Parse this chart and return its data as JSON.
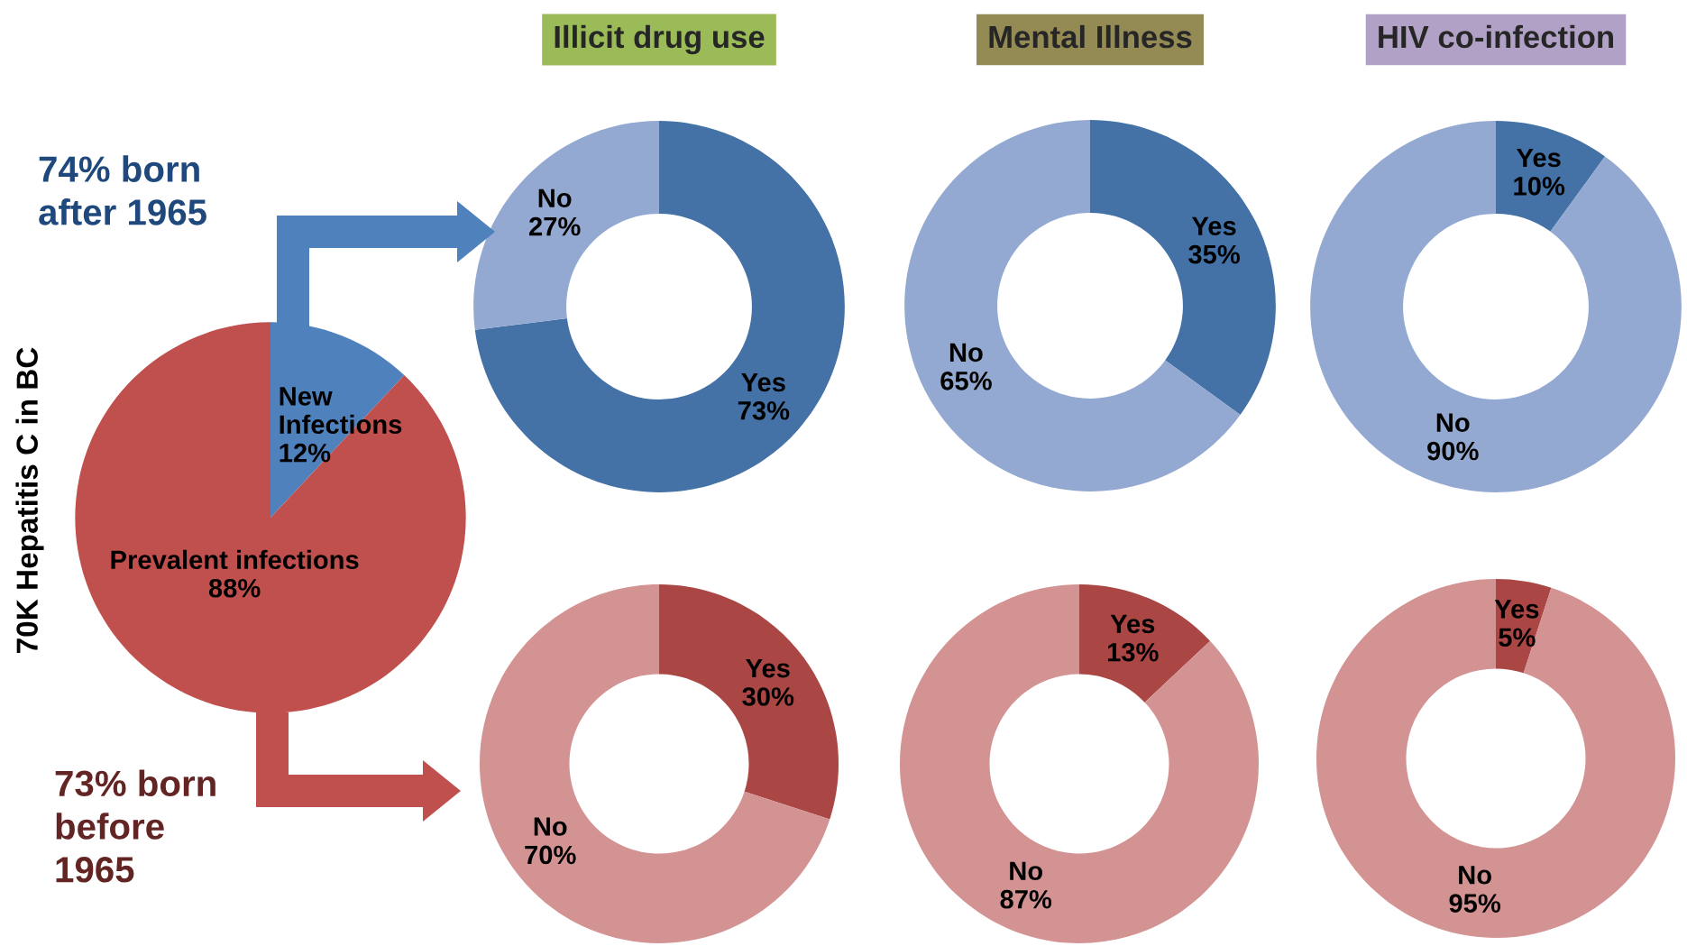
{
  "chart_data": [
    {
      "type": "pie",
      "ylabel": "70K Hepatitis C in BC",
      "categories": [
        "New Infections",
        "Prevalent infections"
      ],
      "values": [
        12,
        88
      ],
      "colors": [
        "#4f81bd",
        "#c0504d"
      ],
      "value_labels": [
        "12%",
        "88%"
      ],
      "annotations": [
        "74% born\nafter 1965",
        "73% born\nbefore\n1965"
      ]
    },
    {
      "type": "donut",
      "title": "Illicit drug use",
      "categories": [
        "Yes",
        "No"
      ],
      "values": [
        73,
        27
      ],
      "colors": [
        "#4472a7",
        "#94a9d1"
      ],
      "value_labels": [
        "73%",
        "27%"
      ]
    },
    {
      "type": "donut",
      "title": "Mental Illness",
      "categories": [
        "Yes",
        "No"
      ],
      "values": [
        35,
        65
      ],
      "colors": [
        "#4472a7",
        "#94a9d1"
      ],
      "value_labels": [
        "35%",
        "65%"
      ]
    },
    {
      "type": "donut",
      "title": "HIV co-infection",
      "categories": [
        "Yes",
        "No"
      ],
      "values": [
        10,
        90
      ],
      "colors": [
        "#4472a7",
        "#94a9d1"
      ],
      "value_labels": [
        "10%",
        "90%"
      ]
    },
    {
      "type": "donut",
      "categories": [
        "Yes",
        "No"
      ],
      "values": [
        30,
        70
      ],
      "colors": [
        "#aa4644",
        "#d49393"
      ],
      "value_labels": [
        "30%",
        "70%"
      ]
    },
    {
      "type": "donut",
      "categories": [
        "Yes",
        "No"
      ],
      "values": [
        13,
        87
      ],
      "colors": [
        "#aa4644",
        "#d49393"
      ],
      "value_labels": [
        "13%",
        "87%"
      ]
    },
    {
      "type": "donut",
      "categories": [
        "Yes",
        "No"
      ],
      "values": [
        5,
        95
      ],
      "colors": [
        "#aa4644",
        "#d49393"
      ],
      "value_labels": [
        "5%",
        "95%"
      ]
    }
  ]
}
